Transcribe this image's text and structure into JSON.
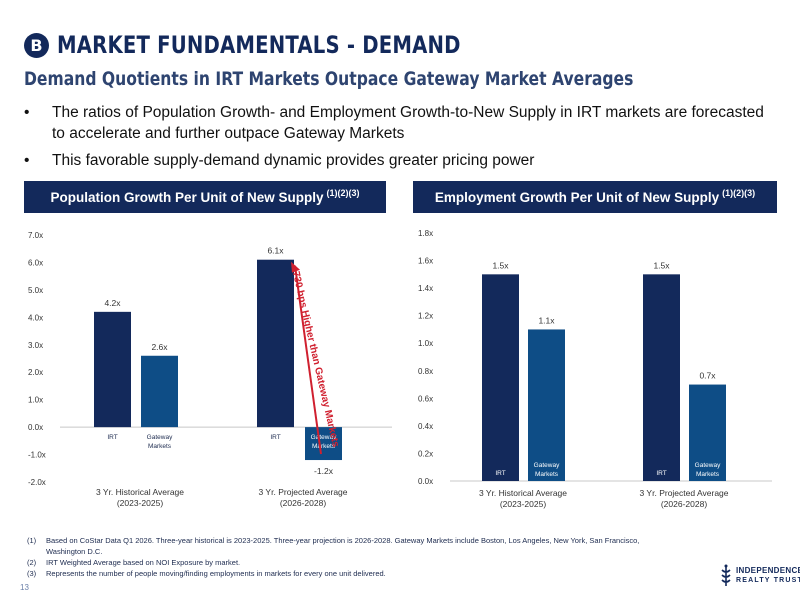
{
  "header": {
    "badge": "B",
    "title": "MARKET FUNDAMENTALS - DEMAND",
    "subtitle": "Demand Quotients in IRT Markets Outpace Gateway Market Averages"
  },
  "bullets": [
    "The ratios of Population Growth- and Employment Growth-to-New Supply in IRT markets are forecasted to accelerate and further outpace Gateway Markets",
    "This favorable supply-demand dynamic provides greater pricing power"
  ],
  "colors": {
    "navy": "#13295b",
    "blue": "#0e4d86",
    "red": "#d0202f"
  },
  "chart_data": [
    {
      "type": "bar",
      "title": "Population Growth Per Unit of New Supply",
      "title_superscript": "(1)(2)(3)",
      "categories": [
        "3 Yr. Historical Average (2023-2025)",
        "3 Yr. Projected Average (2026-2028)"
      ],
      "category_lines": [
        [
          "3 Yr. Historical Average",
          "(2023-2025)"
        ],
        [
          "3 Yr. Projected Average",
          "(2026-2028)"
        ]
      ],
      "series": [
        {
          "name": "IRT",
          "values": [
            4.2,
            6.1
          ],
          "labels": [
            "4.2x",
            "6.1x"
          ]
        },
        {
          "name": "Gateway Markets",
          "values": [
            2.6,
            -1.2
          ],
          "labels": [
            "2.6x",
            "-1.2x"
          ]
        }
      ],
      "ylim": [
        -2.0,
        7.0
      ],
      "yticks": [
        "-2.0x",
        "-1.0x",
        "0.0x",
        "1.0x",
        "2.0x",
        "3.0x",
        "4.0x",
        "5.0x",
        "6.0x",
        "7.0x"
      ],
      "annotation": "730 bps Higher than Gateway Markets"
    },
    {
      "type": "bar",
      "title": "Employment Growth Per Unit of New Supply",
      "title_superscript": "(1)(2)(3)",
      "categories": [
        "3 Yr. Historical Average (2023-2025)",
        "3 Yr. Projected Average (2026-2028)"
      ],
      "category_lines": [
        [
          "3 Yr. Historical Average",
          "(2023-2025)"
        ],
        [
          "3 Yr. Projected Average",
          "(2026-2028)"
        ]
      ],
      "series": [
        {
          "name": "IRT",
          "values": [
            1.5,
            1.5
          ],
          "labels": [
            "1.5x",
            "1.5x"
          ]
        },
        {
          "name": "Gateway Markets",
          "values": [
            1.1,
            0.7
          ],
          "labels": [
            "1.1x",
            "0.7x"
          ]
        }
      ],
      "ylim": [
        0.0,
        1.8
      ],
      "yticks": [
        "0.0x",
        "0.2x",
        "0.4x",
        "0.6x",
        "0.8x",
        "1.0x",
        "1.2x",
        "1.4x",
        "1.6x",
        "1.8x"
      ]
    }
  ],
  "footnotes": [
    {
      "num": "(1)",
      "text": "Based on CoStar Data Q1 2026. Three-year historical is 2023-2025. Three-year projection is 2026-2028. Gateway Markets include Boston, Los Angeles, New York, San Francisco, Washington D.C."
    },
    {
      "num": "(2)",
      "text": "IRT Weighted Average based on NOI Exposure by market."
    },
    {
      "num": "(3)",
      "text": "Represents the number of people moving/finding employments in markets for every one unit delivered."
    }
  ],
  "page_number": "13",
  "logo": {
    "line1": "INDEPENDENCE",
    "line2": "REALTY TRUST"
  }
}
